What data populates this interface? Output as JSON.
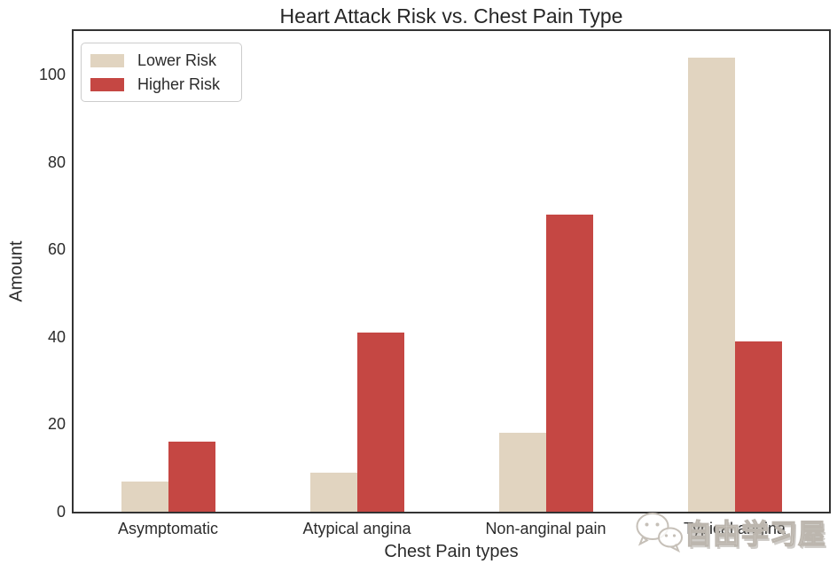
{
  "chart_data": {
    "type": "bar",
    "title": "Heart Attack Risk vs. Chest Pain Type",
    "xlabel": "Chest Pain types",
    "ylabel": "Amount",
    "categories": [
      "Asymptomatic",
      "Atypical angina",
      "Non-anginal pain",
      "Typical angina"
    ],
    "series": [
      {
        "name": "Lower Risk",
        "color": "#e1d4c0",
        "values": [
          7,
          9,
          18,
          104
        ]
      },
      {
        "name": "Higher Risk",
        "color": "#c54743",
        "values": [
          16,
          41,
          68,
          39
        ]
      }
    ],
    "yticks": [
      0,
      20,
      40,
      60,
      80,
      100
    ],
    "ylim": [
      0,
      110
    ],
    "grid": false,
    "legend_position": "upper-left",
    "spine_color": "#333333"
  },
  "watermark": {
    "icon": "wechat-icon",
    "text": "自由学习屋"
  }
}
